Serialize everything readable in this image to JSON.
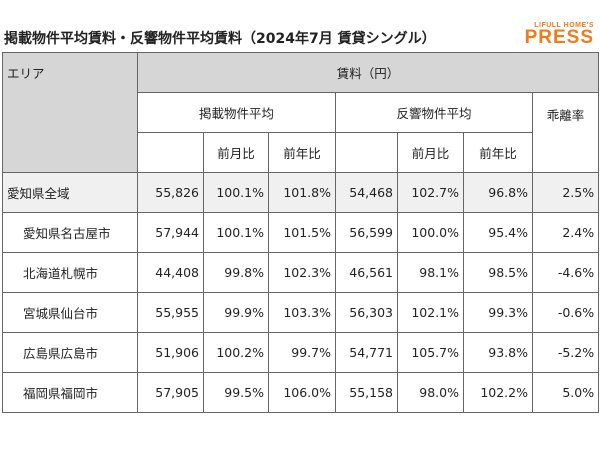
{
  "header": {
    "title": "掲載物件平均賃料・反響物件平均賃料（2024年7月 賃貸シングル）",
    "logo_top": "LIFULL HOME'S",
    "logo_bottom": "PRESS"
  },
  "table": {
    "area_header": "エリア",
    "rent_header": "賃料（円）",
    "group_headers": [
      "掲載物件平均",
      "反響物件平均",
      "乖離率"
    ],
    "sub_headers": [
      "前月比",
      "前年比",
      "前月比",
      "前年比"
    ],
    "rows": [
      [
        "愛知県全域",
        "55,826",
        "100.1%",
        "101.8%",
        "54,468",
        "102.7%",
        "96.8%",
        "2.5%"
      ],
      [
        "愛知県名古屋市",
        "57,944",
        "100.1%",
        "101.5%",
        "56,599",
        "100.0%",
        "95.4%",
        "2.4%"
      ],
      [
        "北海道札幌市",
        "44,408",
        "99.8%",
        "102.3%",
        "46,561",
        "98.1%",
        "98.5%",
        "-4.6%"
      ],
      [
        "宮城県仙台市",
        "55,955",
        "99.9%",
        "103.3%",
        "56,303",
        "102.1%",
        "99.3%",
        "-0.6%"
      ],
      [
        "広島県広島市",
        "51,906",
        "100.2%",
        "99.7%",
        "54,771",
        "105.7%",
        "93.8%",
        "-5.2%"
      ],
      [
        "福岡県福岡市",
        "57,905",
        "99.5%",
        "106.0%",
        "55,158",
        "98.0%",
        "102.2%",
        "5.0%"
      ]
    ]
  }
}
